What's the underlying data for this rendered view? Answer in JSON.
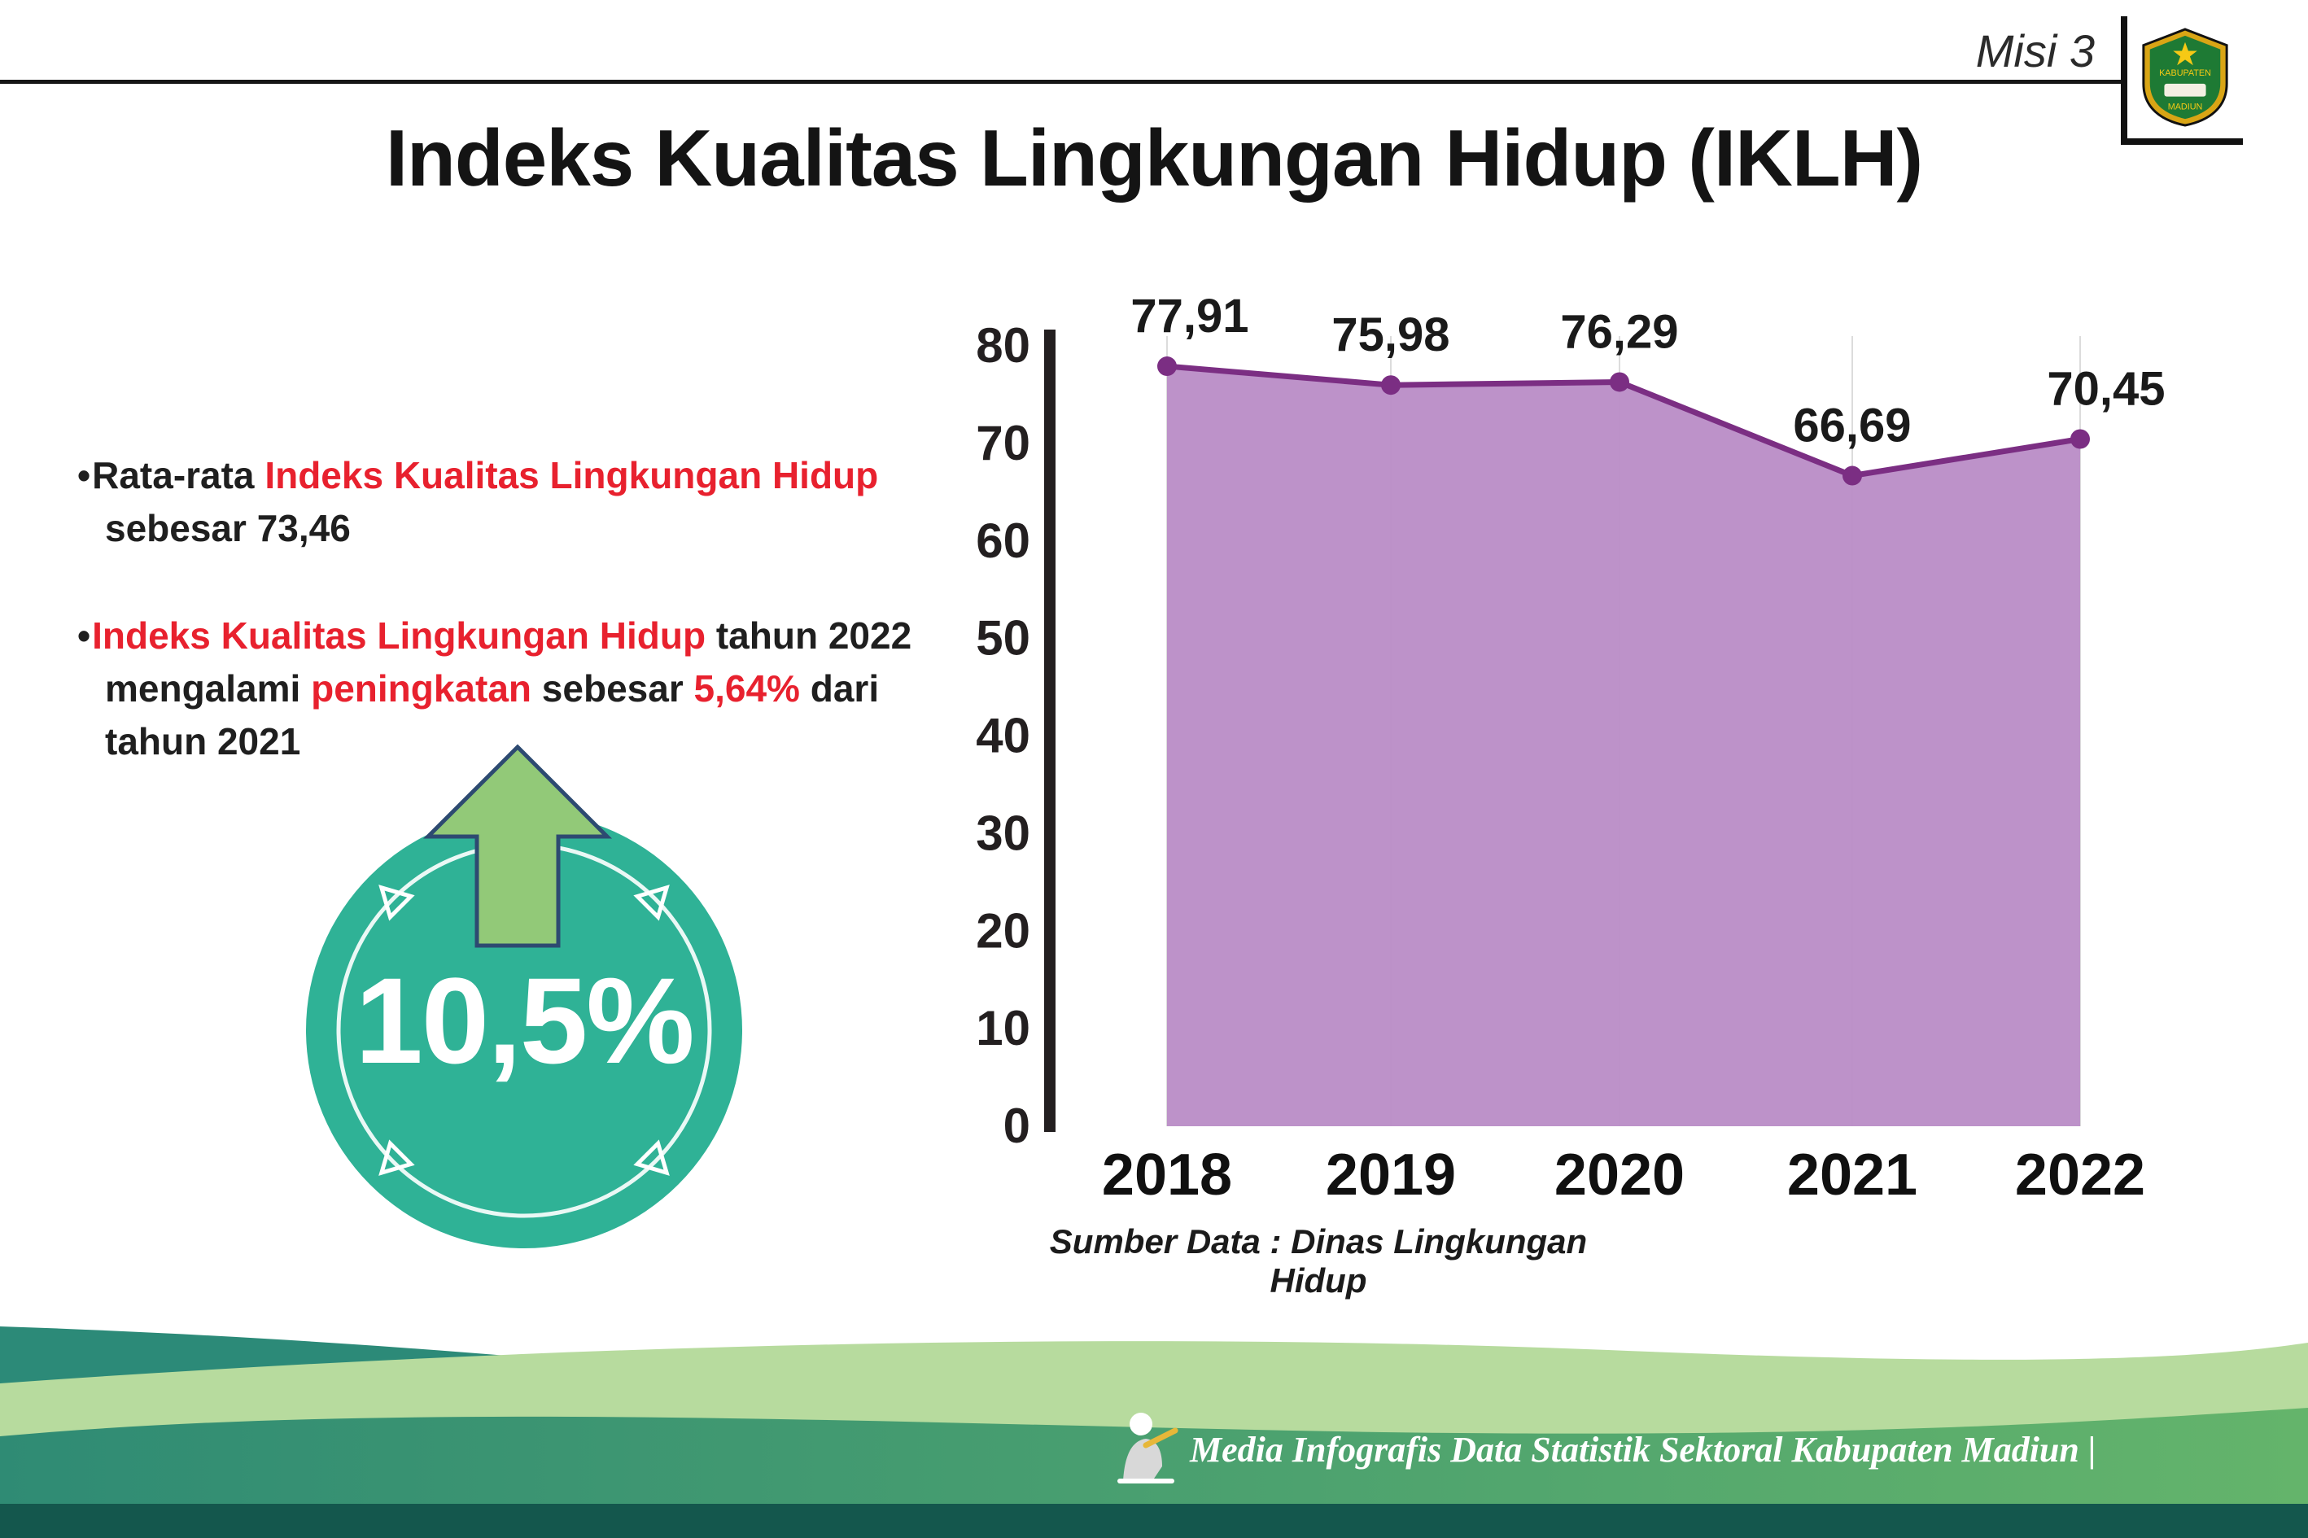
{
  "header": {
    "misi_label": "Misi 3",
    "title": "Indeks Kualitas Lingkungan Hidup (IKLH)",
    "logo": {
      "top_text": "KABUPATEN",
      "bottom_text": "MADIUN"
    }
  },
  "insights": {
    "bullet_marker": "•",
    "highlight_color": "#e8212e",
    "bullets": [
      {
        "segments": [
          {
            "text": "Rata-rata ",
            "highlight": false
          },
          {
            "text": "Indeks Kualitas Lingkungan Hidup",
            "highlight": true
          },
          {
            "text": " sebesar 73,46",
            "highlight": false
          }
        ]
      },
      {
        "segments": [
          {
            "text": "Indeks Kualitas Lingkungan Hidup",
            "highlight": true
          },
          {
            "text": " tahun 2022 mengalami ",
            "highlight": false
          },
          {
            "text": "peningkatan",
            "highlight": true
          },
          {
            "text": " sebesar ",
            "highlight": false
          },
          {
            "text": "5,64%",
            "highlight": true
          },
          {
            "text": " dari tahun 2021",
            "highlight": false
          }
        ]
      }
    ]
  },
  "badge": {
    "value": "10,5%",
    "circle_color": "#2fb296",
    "arrow_color": "#92c978",
    "arrow_outline": "#2d4a71"
  },
  "chart_data": {
    "type": "area",
    "title": "",
    "categories": [
      "2018",
      "2019",
      "2020",
      "2021",
      "2022"
    ],
    "series": [
      {
        "name": "IKLH",
        "values": [
          77.91,
          75.98,
          76.29,
          66.69,
          70.45
        ]
      }
    ],
    "value_labels": [
      "77,91",
      "75,98",
      "76,29",
      "66,69",
      "70,45"
    ],
    "xlabel": "",
    "ylabel": "",
    "ylim": [
      0,
      80
    ],
    "ytick_step": 10,
    "grid": "vertical-light",
    "legend": "none",
    "area_color": "#b98cc6",
    "line_color": "#7b2e83",
    "grid_color": "#dcdcdc"
  },
  "source_note": "Sumber Data : Dinas Lingkungan Hidup",
  "footer": {
    "caption": "Media Infografis Data Statistik Sektoral Kabupaten Madiun |"
  }
}
